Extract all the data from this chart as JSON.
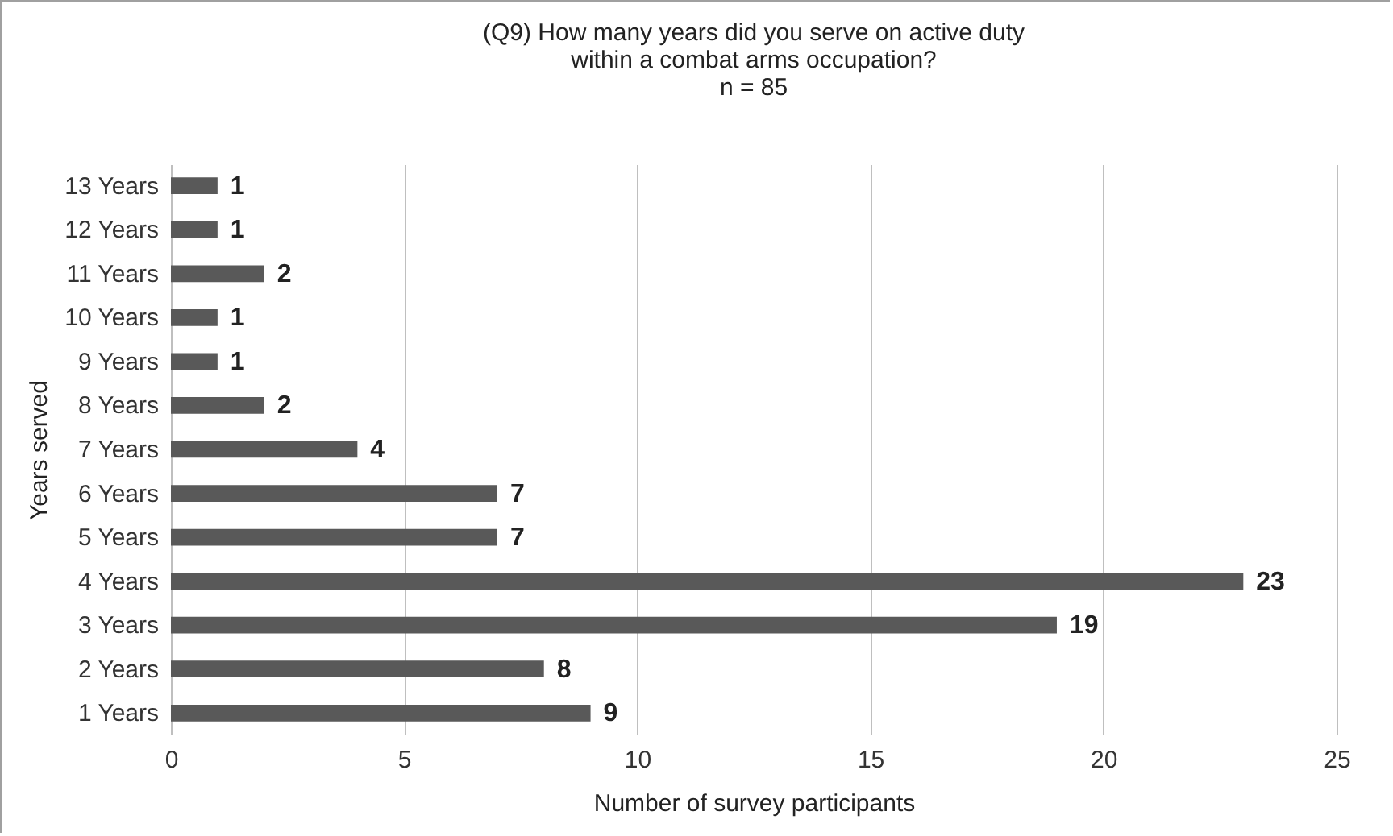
{
  "chart_data": {
    "type": "bar",
    "orientation": "horizontal",
    "title": "(Q9) How many years did you serve on active duty\nwithin a combat arms occupation?\nn = 85",
    "xlabel": "Number of survey participants",
    "ylabel": "Years served",
    "categories": [
      "13 Years",
      "12 Years",
      "11 Years",
      "10 Years",
      "9 Years",
      "8 Years",
      "7 Years",
      "6 Years",
      "5 Years",
      "4 Years",
      "3 Years",
      "2 Years",
      "1 Years"
    ],
    "values": [
      1,
      1,
      2,
      1,
      1,
      2,
      4,
      7,
      7,
      23,
      19,
      8,
      9
    ],
    "color": "#595959",
    "xlim": [
      0,
      25
    ],
    "xticks": [
      0,
      5,
      10,
      15,
      20,
      25
    ],
    "grid": "x",
    "data_labels": true
  }
}
